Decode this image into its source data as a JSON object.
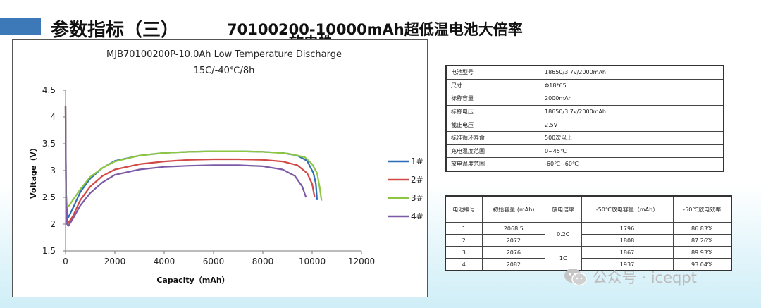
{
  "header": {
    "title": "参数指标（三）",
    "subtitle": "70100200-10000mAh超低温电池大倍率",
    "subtitle_cut": "放电性能"
  },
  "colors": {
    "accent": "#3d78b8",
    "s1": "#2e6db8",
    "s2": "#d24a47",
    "s3": "#8dc641",
    "s4": "#7b5aa6"
  },
  "chart_data": {
    "type": "line",
    "title": "MJB70100200P-10.0Ah Low Temperature Discharge",
    "subtitle": "15C/-40℃/8h",
    "xlabel": "Capacity（mAh）",
    "ylabel": "Voltage（V）",
    "xlim": [
      0,
      12000
    ],
    "ylim": [
      1.5,
      4.5
    ],
    "xticks": [
      "0",
      "2000",
      "4000",
      "6000",
      "8000",
      "10000",
      "12000"
    ],
    "yticks": [
      "1.5",
      "2",
      "2.5",
      "3",
      "3.5",
      "4",
      "4.5"
    ],
    "grid": false,
    "legend": "right",
    "series": [
      {
        "name": "1#",
        "color": "#2e6db8",
        "x": [
          0,
          20,
          60,
          120,
          300,
          600,
          1000,
          1500,
          2000,
          3000,
          4000,
          5000,
          6000,
          7000,
          8000,
          8800,
          9400,
          9800,
          10050,
          10150,
          10200
        ],
        "y": [
          4.2,
          2.6,
          2.2,
          2.13,
          2.3,
          2.6,
          2.85,
          3.05,
          3.18,
          3.28,
          3.33,
          3.35,
          3.36,
          3.36,
          3.35,
          3.33,
          3.28,
          3.18,
          2.95,
          2.75,
          2.45
        ]
      },
      {
        "name": "2#",
        "color": "#d24a47",
        "x": [
          0,
          20,
          60,
          120,
          300,
          600,
          1000,
          1500,
          2000,
          3000,
          4000,
          5000,
          6000,
          7000,
          8000,
          8800,
          9400,
          9800,
          10000,
          10100
        ],
        "y": [
          4.2,
          2.5,
          2.1,
          2.02,
          2.15,
          2.45,
          2.7,
          2.9,
          3.02,
          3.12,
          3.17,
          3.2,
          3.21,
          3.21,
          3.2,
          3.17,
          3.1,
          2.95,
          2.75,
          2.5
        ]
      },
      {
        "name": "3#",
        "color": "#8dc641",
        "x": [
          0,
          20,
          60,
          120,
          300,
          600,
          1000,
          1500,
          2000,
          3000,
          4000,
          5000,
          6000,
          7000,
          8000,
          9000,
          9700,
          10000,
          10200,
          10300,
          10380
        ],
        "y": [
          4.2,
          2.6,
          2.35,
          2.33,
          2.45,
          2.65,
          2.88,
          3.05,
          3.17,
          3.28,
          3.33,
          3.35,
          3.36,
          3.36,
          3.35,
          3.32,
          3.25,
          3.12,
          2.95,
          2.7,
          2.44
        ]
      },
      {
        "name": "4#",
        "color": "#7b5aa6",
        "x": [
          0,
          20,
          60,
          120,
          300,
          600,
          1000,
          1500,
          2000,
          3000,
          4000,
          5000,
          6000,
          7000,
          8000,
          8800,
          9300,
          9600,
          9750
        ],
        "y": [
          4.2,
          2.4,
          2.0,
          1.97,
          2.1,
          2.35,
          2.58,
          2.78,
          2.92,
          3.02,
          3.07,
          3.09,
          3.1,
          3.1,
          3.08,
          3.02,
          2.9,
          2.7,
          2.5
        ]
      }
    ]
  },
  "spec_table": {
    "rows": [
      {
        "k": "电池型号",
        "v": "18650/3.7v/2000mAh"
      },
      {
        "k": "尺寸",
        "v": "Φ18*65"
      },
      {
        "k": "标称容量",
        "v": "2000mAh"
      },
      {
        "k": "标称电压",
        "v": "18650/3.7v/2000mAh"
      },
      {
        "k": "截止电压",
        "v": "2.5V"
      },
      {
        "k": "标准循环寿命",
        "v": "500次以上"
      },
      {
        "k": "充电温度范围",
        "v": "0~45℃"
      },
      {
        "k": "放电温度范围",
        "v": "-60℃~60℃"
      }
    ]
  },
  "perf_table": {
    "headers": [
      "电池编号",
      "初始容量\n(mAh)",
      "放电倍率",
      "-50℃放电容量（mAh）",
      "-50℃放电效率"
    ],
    "rate_a": "0.2C",
    "rate_b": "1C",
    "rows": [
      {
        "id": "1",
        "cap": "2068.5",
        "dcap": "1796",
        "eff": "86.83%"
      },
      {
        "id": "2",
        "cap": "2072",
        "dcap": "1808",
        "eff": "87.26%"
      },
      {
        "id": "3",
        "cap": "2076",
        "dcap": "1867",
        "eff": "89.93%"
      },
      {
        "id": "4",
        "cap": "2082",
        "dcap": "1937",
        "eff": "93.04%"
      }
    ]
  },
  "watermark": {
    "text": "公众号 · iceqpt",
    "icon": "wechat-icon"
  }
}
